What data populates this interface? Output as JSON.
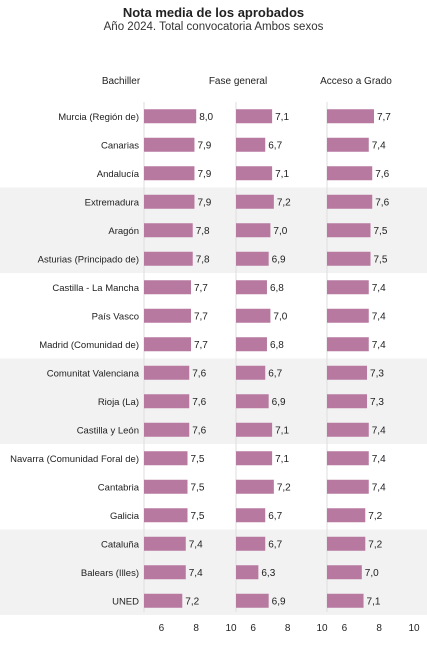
{
  "chart_data": {
    "type": "bar",
    "orientation": "horizontal",
    "title": "Nota media de los aprobados",
    "subtitle": "Año 2024. Total convocatoria Ambos sexos",
    "xlim": [
      5,
      10
    ],
    "xticks": [
      "6",
      "8",
      "10"
    ],
    "colors": {
      "bar": "#b7799f",
      "band": "#f2f2f2",
      "axis": "#dddddd"
    },
    "categories": [
      "Murcia (Región de)",
      "Canarias",
      "Andalucía",
      "Extremadura",
      "Aragón",
      "Asturias (Principado de)",
      "Castilla - La Mancha",
      "País Vasco",
      "Madrid (Comunidad de)",
      "Comunitat Valenciana",
      "Rioja (La)",
      "Castilla y León",
      "Navarra (Comunidad Foral de)",
      "Cantabria",
      "Galicia",
      "Cataluña",
      "Balears (Illes)",
      "UNED"
    ],
    "series": [
      {
        "name": "Bachiller",
        "values": [
          8.0,
          7.9,
          7.9,
          7.9,
          7.8,
          7.8,
          7.7,
          7.7,
          7.7,
          7.6,
          7.6,
          7.6,
          7.5,
          7.5,
          7.5,
          7.4,
          7.4,
          7.2
        ],
        "labels": [
          "8,0",
          "7,9",
          "7,9",
          "7,9",
          "7,8",
          "7,8",
          "7,7",
          "7,7",
          "7,7",
          "7,6",
          "7,6",
          "7,6",
          "7,5",
          "7,5",
          "7,5",
          "7,4",
          "7,4",
          "7,2"
        ]
      },
      {
        "name": "Fase general",
        "values": [
          7.1,
          6.7,
          7.1,
          7.2,
          7.0,
          6.9,
          6.8,
          7.0,
          6.8,
          6.7,
          6.9,
          7.1,
          7.1,
          7.2,
          6.7,
          6.7,
          6.3,
          6.9
        ],
        "labels": [
          "7,1",
          "6,7",
          "7,1",
          "7,2",
          "7,0",
          "6,9",
          "6,8",
          "7,0",
          "6,8",
          "6,7",
          "6,9",
          "7,1",
          "7,1",
          "7,2",
          "6,7",
          "6,7",
          "6,3",
          "6,9"
        ]
      },
      {
        "name": "Acceso a Grado",
        "values": [
          7.7,
          7.4,
          7.6,
          7.6,
          7.5,
          7.5,
          7.4,
          7.4,
          7.4,
          7.3,
          7.3,
          7.4,
          7.4,
          7.4,
          7.2,
          7.2,
          7.0,
          7.1
        ],
        "labels": [
          "7,7",
          "7,4",
          "7,6",
          "7,6",
          "7,5",
          "7,5",
          "7,4",
          "7,4",
          "7,4",
          "7,3",
          "7,3",
          "7,4",
          "7,4",
          "7,4",
          "7,2",
          "7,2",
          "7,0",
          "7,1"
        ]
      }
    ]
  }
}
